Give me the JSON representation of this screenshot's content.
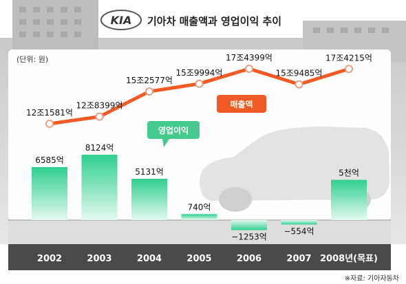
{
  "header": {
    "logo_text": "KIA",
    "title": "기아차 매출액과 영업이익 추이"
  },
  "unit_note": "(단위: 원)",
  "source_note": "※자료: 기아자동차",
  "colors": {
    "revenue_line": "#f15a24",
    "profit_bar": "#3ed49a",
    "profit_bar_light": "#d9f7ea",
    "revenue_badge": "#f15a24",
    "profit_badge": "#46c98e",
    "axis_strip": "#4a4a4a"
  },
  "chart_data": {
    "type": "bar",
    "categories": [
      "2002",
      "2003",
      "2004",
      "2005",
      "2006",
      "2007",
      "2008년(목표)"
    ],
    "series": [
      {
        "name": "매출액",
        "type": "line",
        "values": [
          121581,
          128399,
          152577,
          159994,
          174399,
          159485,
          174215
        ],
        "unit": "억",
        "labels": [
          "12조1581억",
          "12조8399억",
          "15조2577억",
          "15조9994억",
          "17조4399억",
          "15조9485억",
          "17조4215억"
        ]
      },
      {
        "name": "영업이익",
        "type": "bar",
        "values": [
          6585,
          8124,
          5131,
          740,
          -1253,
          -554,
          5000
        ],
        "unit": "억",
        "labels": [
          "6585억",
          "8124억",
          "5131억",
          "740억",
          "−1253억",
          "−554억",
          "5천억"
        ]
      }
    ],
    "ylim_profit": [
      -2000,
      9000
    ],
    "ylim_revenue": [
      100000,
      180000
    ],
    "legend": "inline-badges"
  }
}
